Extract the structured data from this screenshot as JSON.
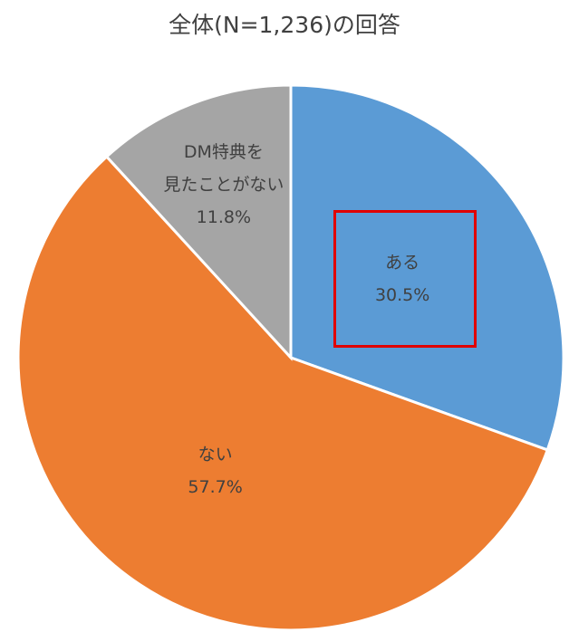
{
  "chart_data": {
    "type": "pie",
    "title": "全体(N=1,236)の回答",
    "categories": [
      "ある",
      "ない",
      "DM特典を\n見たことがない"
    ],
    "values": [
      30.5,
      57.7,
      11.8
    ],
    "value_labels": [
      "30.5%",
      "57.7%",
      "11.8%"
    ],
    "colors": [
      "#5b9bd5",
      "#ed7d31",
      "#a5a5a5"
    ]
  }
}
